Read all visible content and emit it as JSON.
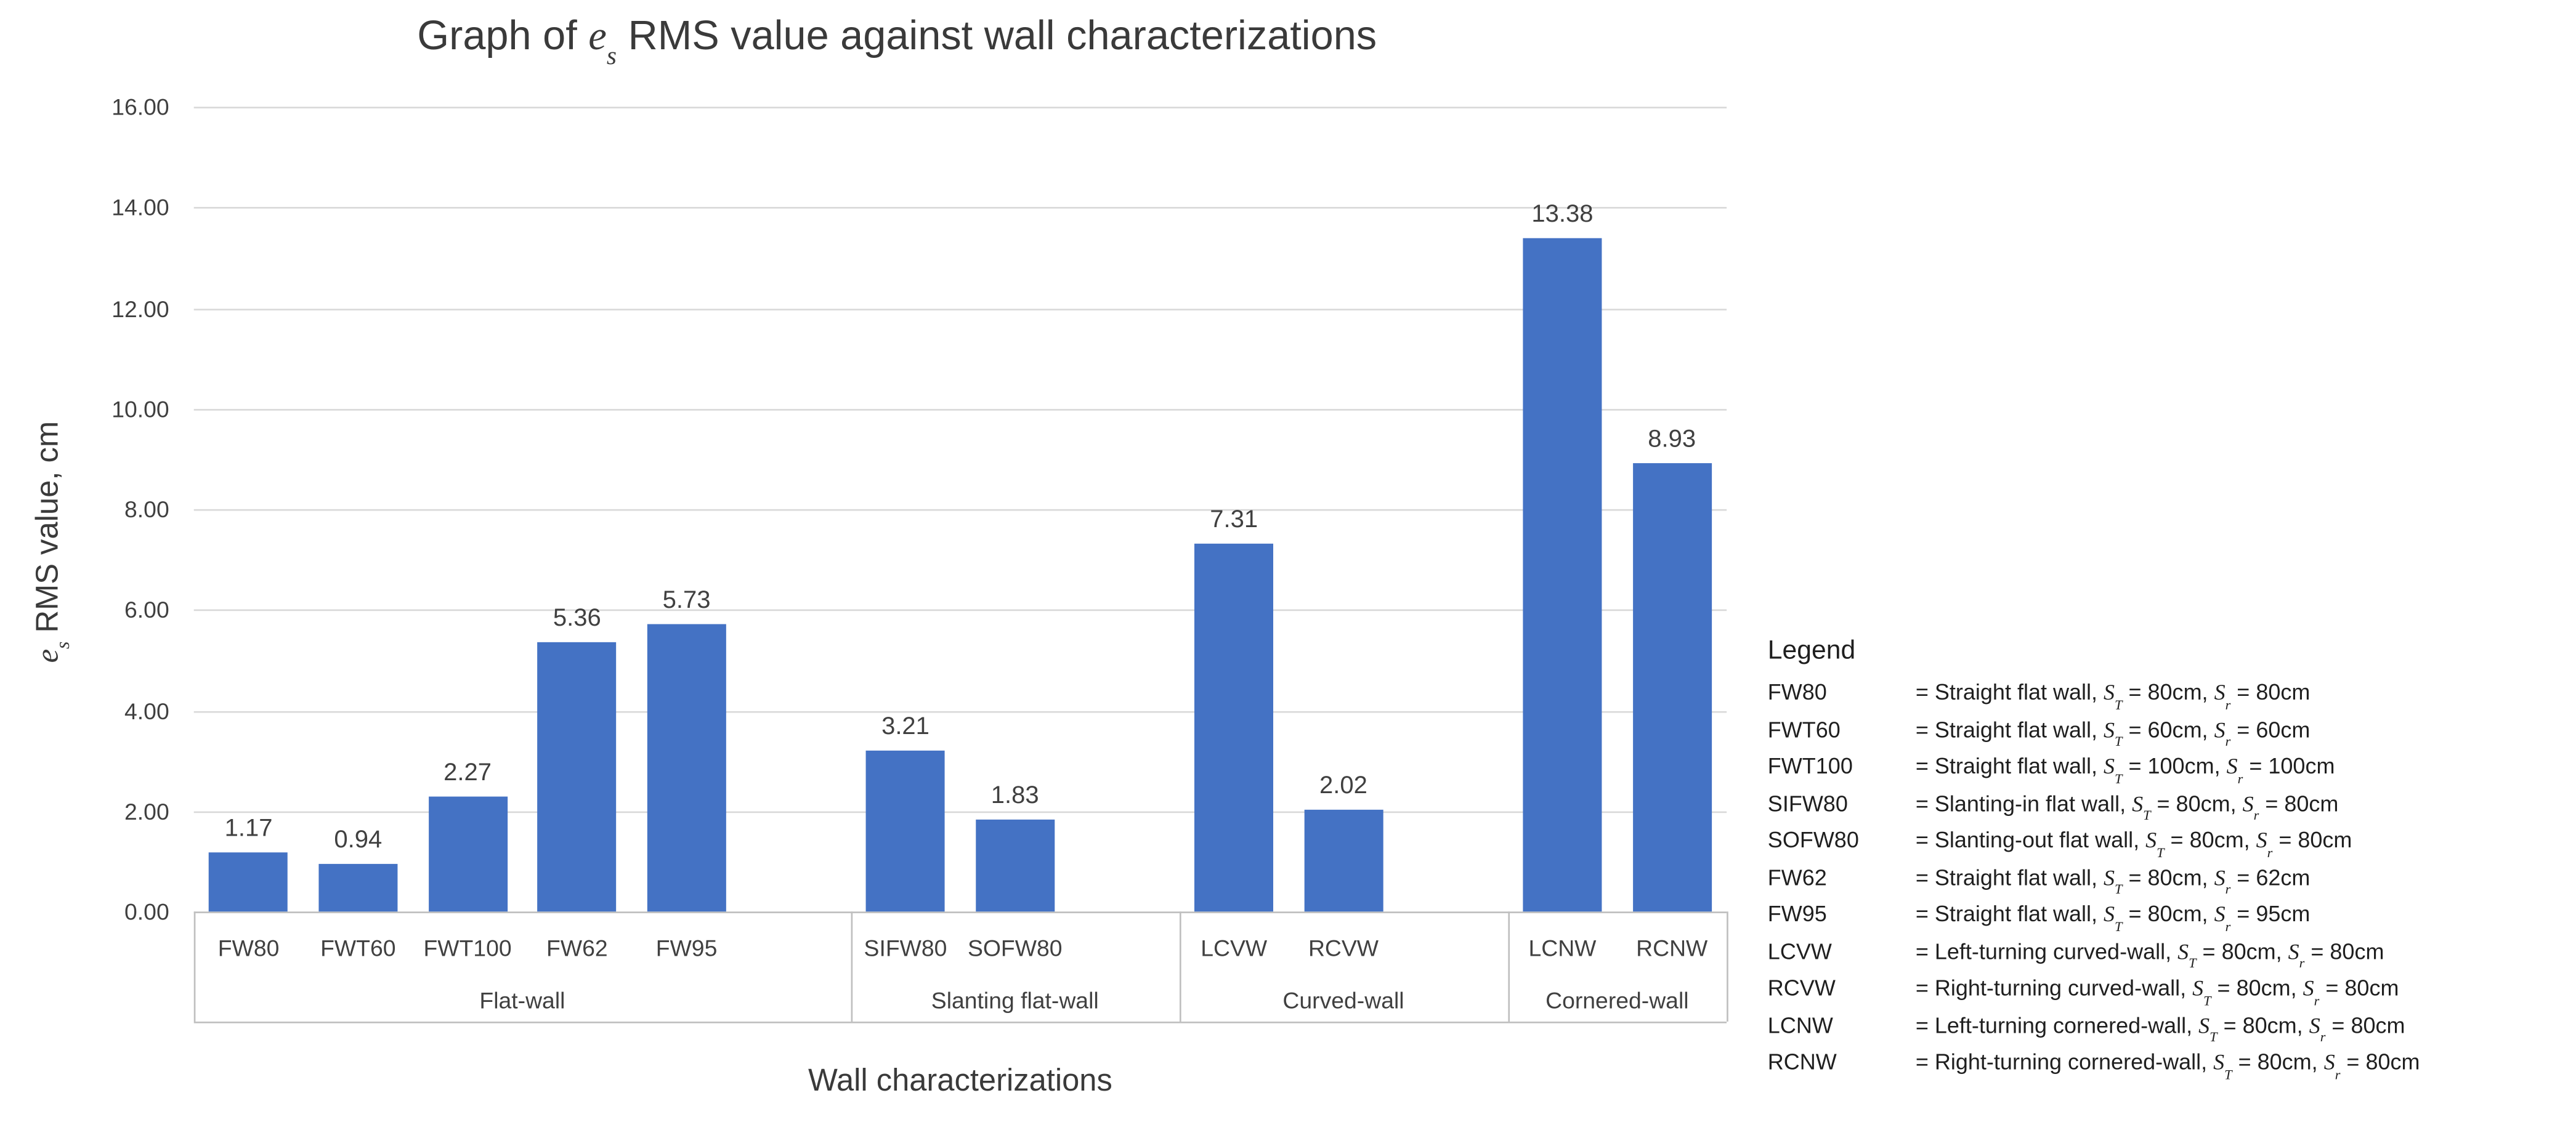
{
  "title": {
    "prefix": "Graph of ",
    "symbol_base": "e",
    "symbol_sub": "s",
    "suffix": " RMS value against wall characterizations"
  },
  "y_axis": {
    "title_base": "e",
    "title_sub": "s",
    "title_suffix": " RMS value, cm",
    "tick_labels": [
      "16.00",
      "14.00",
      "12.00",
      "10.00",
      "8.00",
      "6.00",
      "4.00",
      "2.00",
      "0.00"
    ],
    "min": 0,
    "max": 16,
    "step": 2
  },
  "x_axis": {
    "title": "Wall characterizations"
  },
  "chart_data": {
    "type": "bar",
    "title": "Graph of es RMS value against wall characterizations",
    "xlabel": "Wall characterizations",
    "ylabel": "es RMS value, cm",
    "ylim": [
      0,
      16
    ],
    "grid": true,
    "bar_color": "#4472c4",
    "groups": [
      {
        "label": "Flat-wall",
        "categories": [
          "FW80",
          "FWT60",
          "FWT100",
          "FW62",
          "FW95"
        ],
        "values": [
          1.17,
          0.94,
          2.27,
          5.36,
          5.73
        ],
        "value_labels": [
          "1.17",
          "0.94",
          "2.27",
          "5.36",
          "5.73"
        ]
      },
      {
        "label": "Slanting flat-wall",
        "categories": [
          "SIFW80",
          "SOFW80"
        ],
        "values": [
          3.21,
          1.83
        ],
        "value_labels": [
          "3.21",
          "1.83"
        ]
      },
      {
        "label": "Curved-wall",
        "categories": [
          "LCVW",
          "RCVW"
        ],
        "values": [
          7.31,
          2.02
        ],
        "value_labels": [
          "7.31",
          "2.02"
        ]
      },
      {
        "label": "Cornered-wall",
        "categories": [
          "LCNW",
          "RCNW"
        ],
        "values": [
          13.38,
          8.93
        ],
        "value_labels": [
          "13.38",
          "8.93"
        ]
      }
    ]
  },
  "legend": {
    "title": "Legend",
    "symbols": {
      "s_base": "S",
      "t_sub": "T",
      "r_sub": "r"
    },
    "rows": [
      {
        "key": "FW80",
        "prefix": "= Straight flat wall, ",
        "st_part": " = 80cm, ",
        "sr_part": " = 80cm"
      },
      {
        "key": "FWT60",
        "prefix": "= Straight flat wall, ",
        "st_part": " = 60cm, ",
        "sr_part": " = 60cm"
      },
      {
        "key": "FWT100",
        "prefix": "= Straight flat wall, ",
        "st_part": " = 100cm, ",
        "sr_part": " = 100cm"
      },
      {
        "key": "SIFW80",
        "prefix": "= Slanting-in flat wall, ",
        "st_part": " = 80cm, ",
        "sr_part": " = 80cm"
      },
      {
        "key": "SOFW80",
        "prefix": "= Slanting-out flat wall, ",
        "st_part": " = 80cm, ",
        "sr_part": " = 80cm"
      },
      {
        "key": "FW62",
        "prefix": "= Straight flat wall, ",
        "st_part": " = 80cm, ",
        "sr_part": " = 62cm"
      },
      {
        "key": "FW95",
        "prefix": "= Straight flat wall, ",
        "st_part": " = 80cm, ",
        "sr_part": " = 95cm"
      },
      {
        "key": "LCVW",
        "prefix": "= Left-turning curved-wall, ",
        "st_part": " = 80cm, ",
        "sr_part": " = 80cm"
      },
      {
        "key": "RCVW",
        "prefix": "= Right-turning curved-wall, ",
        "st_part": " = 80cm, ",
        "sr_part": " = 80cm"
      },
      {
        "key": "LCNW",
        "prefix": "= Left-turning cornered-wall, ",
        "st_part": " = 80cm, ",
        "sr_part": " = 80cm"
      },
      {
        "key": "RCNW",
        "prefix": "= Right-turning cornered-wall, ",
        "st_part": " = 80cm, ",
        "sr_part": " = 80cm"
      }
    ]
  },
  "colors": {
    "bar": "#4472c4",
    "gridline": "#d9d9d9",
    "axis_line": "#bfbfbf",
    "label_text": "#404040",
    "legend_text": "#1f1f1f",
    "background": "#ffffff"
  }
}
